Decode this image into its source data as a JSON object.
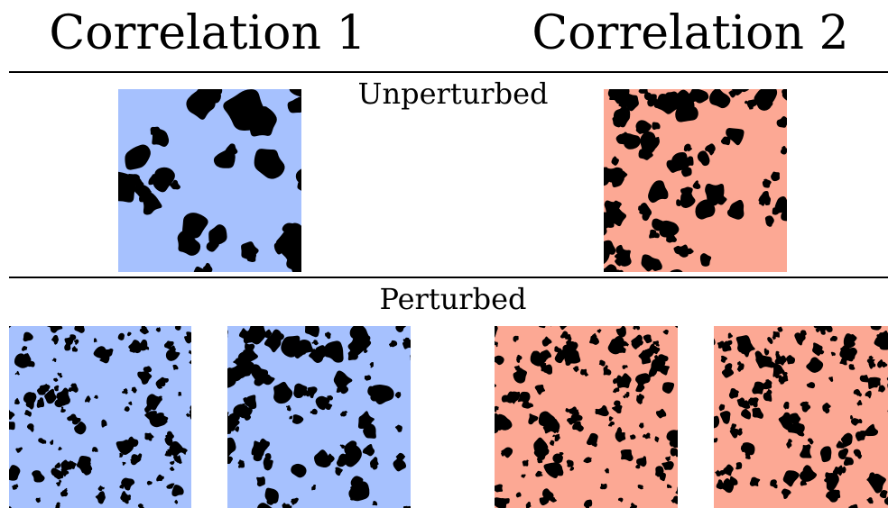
{
  "columns": {
    "left_title": "Correlation 1",
    "right_title": "Correlation 2"
  },
  "sections": {
    "unperturbed_label": "Unperturbed",
    "perturbed_label": "Perturbed"
  },
  "colors": {
    "correlation_1_fill": "#a6c1fe",
    "correlation_2_fill": "#fca894",
    "blob_color": "#000000"
  }
}
